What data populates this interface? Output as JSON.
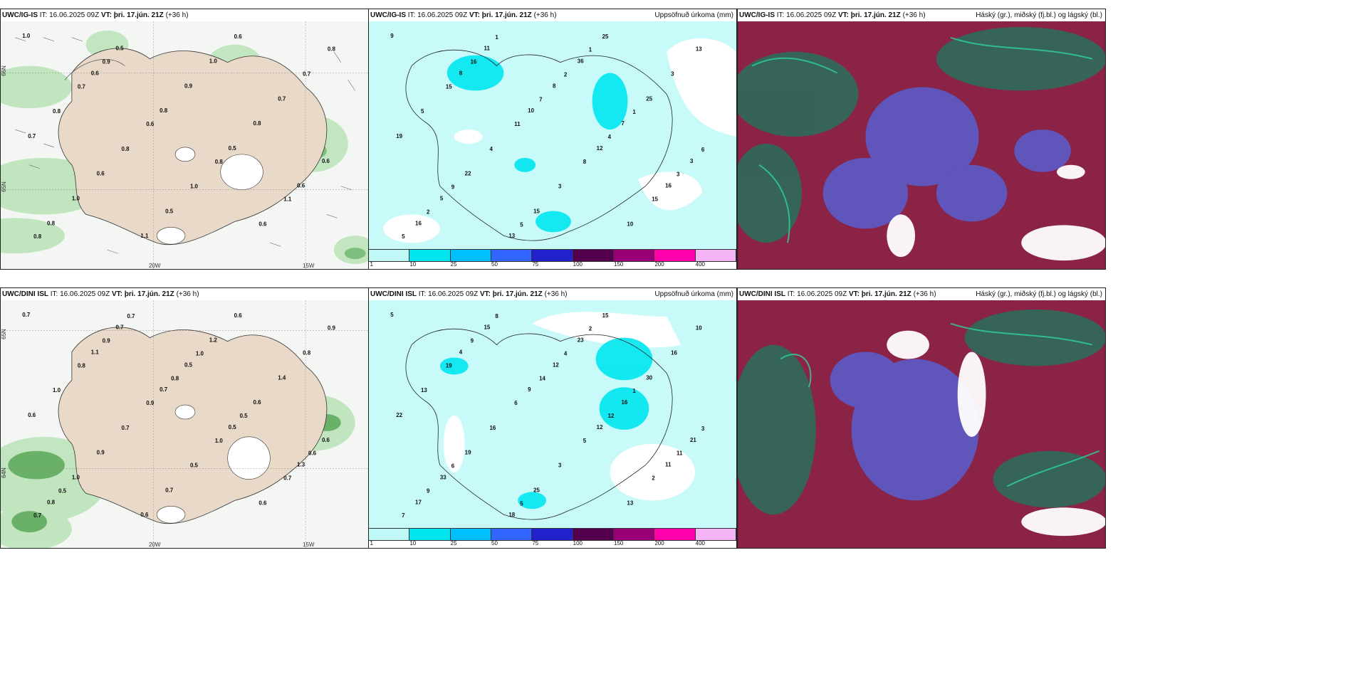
{
  "panels": {
    "p1": {
      "model": "UWC/IG-IS",
      "it": "IT: 16.06.2025 09Z",
      "vt_label": "VT:",
      "vt": "þri. 17.jún. 21Z",
      "lead": "(+36 h)",
      "title_right": ""
    },
    "p2": {
      "model": "UWC/IG-IS",
      "it": "IT: 16.06.2025 09Z",
      "vt_label": "VT:",
      "vt": "þri. 17.jún. 21Z",
      "lead": "(+36 h)",
      "title_right": "Uppsöfnuð úrkoma (mm)"
    },
    "p3": {
      "model": "UWC/IG-IS",
      "it": "IT: 16.06.2025 09Z",
      "vt_label": "VT:",
      "vt": "þri. 17.jún. 21Z",
      "lead": "(+36 h)",
      "title_right": "Háský (gr.), miðský (fj.bl.) og lágský (bl.)"
    },
    "p4": {
      "model": "UWC/DINI ISL",
      "it": "IT: 16.06.2025 09Z",
      "vt_label": "VT:",
      "vt": "þri. 17.jún. 21Z",
      "lead": "(+36 h)",
      "title_right": ""
    },
    "p5": {
      "model": "UWC/DINI ISL",
      "it": "IT: 16.06.2025 09Z",
      "vt_label": "VT:",
      "vt": "þri. 17.jún. 21Z",
      "lead": "(+36 h)",
      "title_right": "Uppsöfnuð úrkoma (mm)"
    },
    "p6": {
      "model": "UWC/DINI ISL",
      "it": "IT: 16.06.2025 09Z",
      "vt_label": "VT:",
      "vt": "þri. 17.jún. 21Z",
      "lead": "(+36 h)",
      "title_right": "Háský (gr.), miðský (fj.bl.) og lágský (bl.)"
    }
  },
  "colorbar": {
    "labels": [
      "1",
      "10",
      "25",
      "50",
      "75",
      "100",
      "150",
      "200",
      "400"
    ],
    "colors": [
      "#c0f8f8",
      "#00e5ee",
      "#00bfff",
      "#3366ff",
      "#2222cc",
      "#55004d",
      "#990077",
      "#ff00aa",
      "#f4b3f4"
    ]
  },
  "axes": {
    "lon_20": "20W",
    "lon_15": "15W",
    "lat_66": "66N",
    "lat_65": "65N",
    "lat_64": "64N"
  },
  "wind_labels_top": [
    "1.0",
    "0.6",
    "0.8",
    "0.5",
    "0.6",
    "0.8",
    "0.5",
    "0.9",
    "0.8",
    "0.6",
    "1.0",
    "1.1",
    "1.0",
    "0.7",
    "0.7",
    "0.6",
    "0.5",
    "0.6",
    "0.7",
    "0.8",
    "0.8",
    "1.0",
    "0.6",
    "0.8",
    "0.7",
    "0.6",
    "0.8",
    "1.1",
    "0.8",
    "0.9"
  ],
  "wind_labels_bottom": [
    "0.7",
    "1.1",
    "0.7",
    "0.5",
    "1.3",
    "0.8",
    "0.7",
    "0.5",
    "0.6",
    "0.6",
    "1.0",
    "0.6",
    "1.2",
    "1.4",
    "0.6",
    "0.9",
    "0.7",
    "0.6",
    "0.8",
    "1.0",
    "0.7",
    "0.5",
    "0.6",
    "0.9",
    "0.8",
    "0.9",
    "1.0",
    "0.7",
    "0.7",
    "0.9",
    "0.8",
    "0.5",
    "0.6",
    "0.5",
    "0.7",
    "1.0"
  ],
  "precip_top": [
    "9",
    "8",
    "10",
    "12",
    "16",
    "16",
    "11",
    "8",
    "7",
    "3",
    "5",
    "13",
    "36",
    "25",
    "19",
    "22",
    "15",
    "25",
    "3",
    "5",
    "4",
    "3",
    "10",
    "13",
    "15",
    "11",
    "8",
    "15",
    "5",
    "16",
    "7",
    "4",
    "3",
    "2",
    "1",
    "2",
    "1",
    "6",
    "9",
    "5",
    "1"
  ],
  "precip_bottom": [
    "5",
    "4",
    "9",
    "12",
    "11",
    "17",
    "15",
    "12",
    "16",
    "21",
    "33",
    "18",
    "23",
    "30",
    "22",
    "19",
    "25",
    "15",
    "16",
    "13",
    "16",
    "3",
    "13",
    "10",
    "19",
    "6",
    "5",
    "2",
    "7",
    "9",
    "14",
    "12",
    "11",
    "9",
    "8",
    "4",
    "1",
    "3",
    "6",
    "5",
    "2"
  ]
}
